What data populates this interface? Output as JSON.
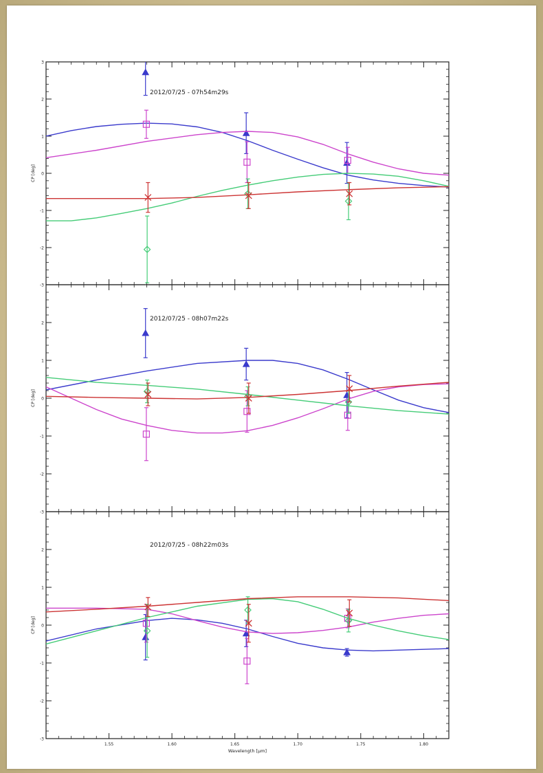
{
  "chart_data": [
    {
      "type": "scatter",
      "title": "2012/07/25 - 07h54m29s",
      "ylabel": "CP [deg]",
      "xlim": [
        1.5,
        1.82
      ],
      "ylim": [
        -3,
        3
      ],
      "yticks": [
        "-3",
        "-2",
        "-1",
        "0",
        "1",
        "2",
        "3"
      ],
      "series": [
        {
          "color": "#3a3acc",
          "marker": "triangle",
          "x": [
            1.58,
            1.66,
            1.74
          ],
          "y": [
            2.72,
            1.08,
            0.28
          ],
          "err": [
            0.62,
            0.55,
            0.55
          ],
          "curve": [
            [
              1.5,
              1.0
            ],
            [
              1.52,
              1.15
            ],
            [
              1.54,
              1.26
            ],
            [
              1.56,
              1.32
            ],
            [
              1.58,
              1.35
            ],
            [
              1.6,
              1.33
            ],
            [
              1.62,
              1.25
            ],
            [
              1.64,
              1.1
            ],
            [
              1.66,
              0.88
            ],
            [
              1.68,
              0.62
            ],
            [
              1.7,
              0.38
            ],
            [
              1.72,
              0.15
            ],
            [
              1.74,
              -0.05
            ],
            [
              1.76,
              -0.18
            ],
            [
              1.78,
              -0.27
            ],
            [
              1.8,
              -0.33
            ],
            [
              1.82,
              -0.37
            ]
          ]
        },
        {
          "color": "#cc44cc",
          "marker": "square",
          "x": [
            1.58,
            1.66,
            1.74
          ],
          "y": [
            1.32,
            0.3,
            0.35
          ],
          "err": [
            0.38,
            0.55,
            0.35
          ],
          "curve": [
            [
              1.5,
              0.42
            ],
            [
              1.54,
              0.62
            ],
            [
              1.58,
              0.86
            ],
            [
              1.62,
              1.04
            ],
            [
              1.64,
              1.1
            ],
            [
              1.66,
              1.13
            ],
            [
              1.68,
              1.1
            ],
            [
              1.7,
              0.98
            ],
            [
              1.72,
              0.78
            ],
            [
              1.74,
              0.52
            ],
            [
              1.76,
              0.3
            ],
            [
              1.78,
              0.12
            ],
            [
              1.8,
              0.0
            ],
            [
              1.82,
              -0.05
            ]
          ]
        },
        {
          "color": "#44cc77",
          "marker": "diamond",
          "x": [
            1.58,
            1.66,
            1.74
          ],
          "y": [
            -2.05,
            -0.55,
            -0.75
          ],
          "err": [
            0.9,
            0.4,
            0.5
          ],
          "curve": [
            [
              1.5,
              -1.28
            ],
            [
              1.52,
              -1.28
            ],
            [
              1.54,
              -1.2
            ],
            [
              1.56,
              -1.08
            ],
            [
              1.58,
              -0.95
            ],
            [
              1.6,
              -0.8
            ],
            [
              1.62,
              -0.62
            ],
            [
              1.64,
              -0.46
            ],
            [
              1.66,
              -0.32
            ],
            [
              1.68,
              -0.2
            ],
            [
              1.7,
              -0.1
            ],
            [
              1.72,
              -0.03
            ],
            [
              1.74,
              0.0
            ],
            [
              1.76,
              -0.02
            ],
            [
              1.78,
              -0.08
            ],
            [
              1.8,
              -0.2
            ],
            [
              1.82,
              -0.35
            ]
          ]
        },
        {
          "color": "#cc3333",
          "marker": "x",
          "x": [
            1.58,
            1.66,
            1.74
          ],
          "y": [
            -0.65,
            -0.6,
            -0.55
          ],
          "err": [
            0.4,
            0.35,
            0.3
          ],
          "curve": [
            [
              1.5,
              -0.68
            ],
            [
              1.58,
              -0.68
            ],
            [
              1.62,
              -0.65
            ],
            [
              1.66,
              -0.58
            ],
            [
              1.7,
              -0.5
            ],
            [
              1.74,
              -0.44
            ],
            [
              1.78,
              -0.39
            ],
            [
              1.82,
              -0.36
            ]
          ]
        }
      ]
    },
    {
      "type": "scatter",
      "title": "2012/07/25 - 08h07m22s",
      "ylabel": "CP [deg]",
      "xlim": [
        1.5,
        1.82
      ],
      "ylim": [
        -3,
        3
      ],
      "yticks": [
        "-3",
        "-2",
        "-1",
        "0",
        "1",
        "2",
        ""
      ],
      "series": [
        {
          "color": "#3a3acc",
          "marker": "triangle",
          "x": [
            1.58,
            1.66,
            1.74
          ],
          "y": [
            1.72,
            0.9,
            0.08
          ],
          "err": [
            0.65,
            0.42,
            0.6
          ],
          "curve": [
            [
              1.5,
              0.22
            ],
            [
              1.54,
              0.48
            ],
            [
              1.58,
              0.72
            ],
            [
              1.62,
              0.92
            ],
            [
              1.66,
              1.0
            ],
            [
              1.68,
              1.0
            ],
            [
              1.7,
              0.92
            ],
            [
              1.72,
              0.75
            ],
            [
              1.74,
              0.5
            ],
            [
              1.76,
              0.22
            ],
            [
              1.78,
              -0.05
            ],
            [
              1.8,
              -0.25
            ],
            [
              1.82,
              -0.38
            ]
          ]
        },
        {
          "color": "#cc44cc",
          "marker": "square",
          "x": [
            1.58,
            1.66,
            1.74
          ],
          "y": [
            -0.95,
            -0.35,
            -0.45
          ],
          "err": [
            0.7,
            0.55,
            0.4
          ],
          "curve": [
            [
              1.5,
              0.3
            ],
            [
              1.52,
              0.0
            ],
            [
              1.54,
              -0.3
            ],
            [
              1.56,
              -0.55
            ],
            [
              1.58,
              -0.72
            ],
            [
              1.6,
              -0.85
            ],
            [
              1.62,
              -0.92
            ],
            [
              1.64,
              -0.92
            ],
            [
              1.66,
              -0.86
            ],
            [
              1.68,
              -0.72
            ],
            [
              1.7,
              -0.52
            ],
            [
              1.72,
              -0.28
            ],
            [
              1.74,
              -0.02
            ],
            [
              1.76,
              0.18
            ],
            [
              1.78,
              0.3
            ],
            [
              1.8,
              0.36
            ],
            [
              1.82,
              0.38
            ]
          ]
        },
        {
          "color": "#44cc77",
          "marker": "diamond",
          "x": [
            1.58,
            1.66,
            1.74
          ],
          "y": [
            0.18,
            0.05,
            -0.1
          ],
          "err": [
            0.3,
            0.25,
            0.3
          ],
          "curve": [
            [
              1.5,
              0.55
            ],
            [
              1.54,
              0.42
            ],
            [
              1.58,
              0.34
            ],
            [
              1.62,
              0.24
            ],
            [
              1.66,
              0.1
            ],
            [
              1.7,
              -0.05
            ],
            [
              1.74,
              -0.2
            ],
            [
              1.78,
              -0.33
            ],
            [
              1.82,
              -0.42
            ]
          ]
        },
        {
          "color": "#cc3333",
          "marker": "x",
          "x": [
            1.58,
            1.66,
            1.74
          ],
          "y": [
            0.1,
            0.0,
            0.25
          ],
          "err": [
            0.3,
            0.4,
            0.35
          ],
          "curve": [
            [
              1.5,
              0.05
            ],
            [
              1.54,
              0.02
            ],
            [
              1.58,
              0.0
            ],
            [
              1.62,
              -0.02
            ],
            [
              1.66,
              0.02
            ],
            [
              1.7,
              0.1
            ],
            [
              1.74,
              0.2
            ],
            [
              1.78,
              0.32
            ],
            [
              1.82,
              0.42
            ]
          ]
        }
      ]
    },
    {
      "type": "scatter",
      "title": "2012/07/25 - 08h22m03s",
      "ylabel": "CP [deg]",
      "xlabel": "Wavelength [μm]",
      "xlim": [
        1.5,
        1.82
      ],
      "ylim": [
        -3,
        3
      ],
      "yticks": [
        "-3",
        "-2",
        "-1",
        "0",
        "1",
        "2",
        ""
      ],
      "xticks": [
        "1.55",
        "1.60",
        "1.65",
        "1.70",
        "1.75",
        "1.80"
      ],
      "series": [
        {
          "color": "#3a3acc",
          "marker": "triangle",
          "x": [
            1.58,
            1.66,
            1.74
          ],
          "y": [
            -0.32,
            -0.22,
            -0.72
          ],
          "err": [
            0.6,
            0.35,
            0.1
          ],
          "curve": [
            [
              1.5,
              -0.42
            ],
            [
              1.54,
              -0.1
            ],
            [
              1.58,
              0.12
            ],
            [
              1.6,
              0.18
            ],
            [
              1.62,
              0.14
            ],
            [
              1.64,
              0.05
            ],
            [
              1.66,
              -0.1
            ],
            [
              1.68,
              -0.3
            ],
            [
              1.7,
              -0.48
            ],
            [
              1.72,
              -0.6
            ],
            [
              1.74,
              -0.66
            ],
            [
              1.76,
              -0.68
            ],
            [
              1.78,
              -0.66
            ],
            [
              1.8,
              -0.64
            ],
            [
              1.82,
              -0.62
            ]
          ]
        },
        {
          "color": "#cc44cc",
          "marker": "square",
          "x": [
            1.58,
            1.66,
            1.74
          ],
          "y": [
            0.05,
            -0.95,
            0.18
          ],
          "err": [
            0.5,
            0.6,
            0.25
          ],
          "curve": [
            [
              1.5,
              0.45
            ],
            [
              1.54,
              0.45
            ],
            [
              1.58,
              0.42
            ],
            [
              1.6,
              0.3
            ],
            [
              1.62,
              0.12
            ],
            [
              1.64,
              -0.05
            ],
            [
              1.66,
              -0.18
            ],
            [
              1.68,
              -0.22
            ],
            [
              1.7,
              -0.2
            ],
            [
              1.72,
              -0.14
            ],
            [
              1.74,
              -0.05
            ],
            [
              1.76,
              0.08
            ],
            [
              1.78,
              0.18
            ],
            [
              1.8,
              0.26
            ],
            [
              1.82,
              0.3
            ]
          ]
        },
        {
          "color": "#44cc77",
          "marker": "diamond",
          "x": [
            1.58,
            1.66,
            1.74
          ],
          "y": [
            -0.15,
            0.4,
            0.12
          ],
          "err": [
            0.7,
            0.35,
            0.3
          ],
          "curve": [
            [
              1.5,
              -0.5
            ],
            [
              1.54,
              -0.15
            ],
            [
              1.58,
              0.2
            ],
            [
              1.62,
              0.5
            ],
            [
              1.66,
              0.68
            ],
            [
              1.68,
              0.7
            ],
            [
              1.7,
              0.62
            ],
            [
              1.72,
              0.42
            ],
            [
              1.74,
              0.18
            ],
            [
              1.76,
              0.0
            ],
            [
              1.78,
              -0.15
            ],
            [
              1.8,
              -0.28
            ],
            [
              1.82,
              -0.38
            ]
          ]
        },
        {
          "color": "#cc3333",
          "marker": "x",
          "x": [
            1.58,
            1.66,
            1.74
          ],
          "y": [
            0.48,
            0.05,
            0.32
          ],
          "err": [
            0.25,
            0.5,
            0.35
          ],
          "curve": [
            [
              1.5,
              0.35
            ],
            [
              1.54,
              0.42
            ],
            [
              1.58,
              0.5
            ],
            [
              1.62,
              0.6
            ],
            [
              1.66,
              0.7
            ],
            [
              1.7,
              0.75
            ],
            [
              1.74,
              0.75
            ],
            [
              1.78,
              0.72
            ],
            [
              1.82,
              0.65
            ]
          ]
        }
      ]
    }
  ]
}
